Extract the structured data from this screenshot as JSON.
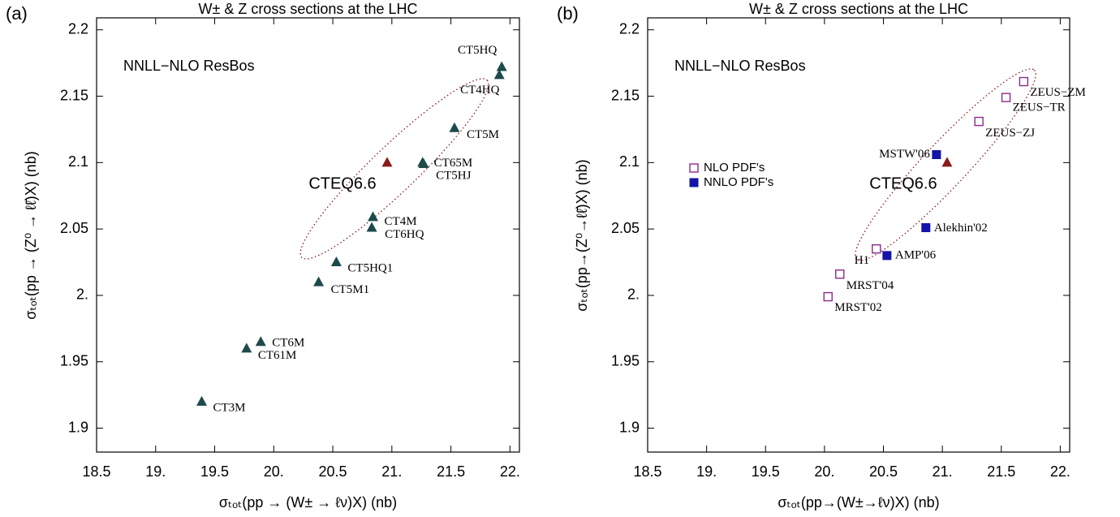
{
  "chart_data": [
    {
      "type": "scatter",
      "panel_label": "(a)",
      "title": "W± & Z cross sections at the LHC",
      "annotation": "NNLL−NLO ResBos",
      "x_label": "σₜₒₜ(pp → (W± → ℓν)X) (nb)",
      "y_label": "σₜₒₜ(pp → (Z⁰ → ℓℓ̄)X) (nb)",
      "xlim": [
        18.5,
        22.08
      ],
      "ylim": [
        1.882,
        2.209
      ],
      "xticks": [
        18.5,
        {
          "value": 19,
          "label": "19."
        },
        19.5,
        {
          "value": 20,
          "label": "20."
        },
        20.5,
        {
          "value": 21,
          "label": "21."
        },
        21.5,
        {
          "value": 22,
          "label": "22."
        }
      ],
      "yticks": [
        1.9,
        1.95,
        {
          "value": 2,
          "label": "2."
        },
        2.05,
        2.1,
        2.15,
        2.2
      ],
      "series": [
        {
          "color": "#1d4a4a",
          "marker": "triangle",
          "x": [
            21.93,
            21.91,
            21.53,
            21.26,
            21.27,
            20.84,
            20.83,
            20.53,
            20.38,
            19.89,
            19.77,
            19.39
          ],
          "values": [
            2.172,
            2.166,
            2.126,
            2.1,
            2.099,
            2.059,
            2.051,
            2.025,
            2.01,
            1.965,
            1.96,
            1.92
          ],
          "labels": [
            "CT5HQ",
            "CT4HQ",
            "CT5M",
            "CT65M",
            "CT5HJ",
            "CT4M",
            "CT6HQ",
            "CT5HQ1",
            "CT5M1",
            "CT6M",
            "CT61M",
            "CT3M"
          ]
        },
        {
          "color": "#8b1a1a",
          "marker": "triangle",
          "x": [
            20.96
          ],
          "values": [
            2.1
          ],
          "labels": [
            "CTEQ6.6"
          ]
        }
      ]
    },
    {
      "type": "scatter",
      "panel_label": "(b)",
      "title": "W± & Z cross sections at the LHC",
      "annotation": "NNLL−NLO ResBos",
      "x_label": "σₜₒₜ(pp→(W±→ℓν)X) (nb)",
      "y_label": "σₜₒₜ(pp→(Z⁰→ℓℓ̄)X) (nb)",
      "xlim": [
        18.5,
        22.08
      ],
      "ylim": [
        1.882,
        2.209
      ],
      "xticks": [
        18.5,
        {
          "value": 19,
          "label": "19."
        },
        19.5,
        {
          "value": 20,
          "label": "20."
        },
        20.5,
        {
          "value": 21,
          "label": "21."
        },
        21.5,
        {
          "value": 22,
          "label": "22."
        }
      ],
      "yticks": [
        1.9,
        1.95,
        {
          "value": 2,
          "label": "2."
        },
        2.05,
        2.1,
        2.15,
        2.2
      ],
      "legend": "left",
      "series": [
        {
          "name": "NLO PDF's",
          "color": "#8b2a8b",
          "marker": "open-square",
          "x": [
            21.69,
            21.54,
            21.31,
            20.44,
            20.13,
            20.03
          ],
          "values": [
            2.161,
            2.149,
            2.131,
            2.035,
            2.016,
            1.999
          ],
          "labels": [
            "ZEUS−ZM",
            "ZEUS−TR",
            "ZEUS−ZJ",
            "H1",
            "MRST'04",
            "MRST'02"
          ]
        },
        {
          "name": "NNLO PDF's",
          "color": "#1414a8",
          "marker": "filled-square",
          "x": [
            20.95,
            20.86,
            20.53
          ],
          "values": [
            2.106,
            2.051,
            2.03
          ],
          "labels": [
            "MSTW'06",
            "Alekhin'02",
            "AMP'06"
          ]
        },
        {
          "color": "#8b1a1a",
          "marker": "triangle",
          "x": [
            21.04
          ],
          "values": [
            2.1
          ],
          "labels": [
            "CTEQ6.6"
          ]
        }
      ]
    }
  ]
}
